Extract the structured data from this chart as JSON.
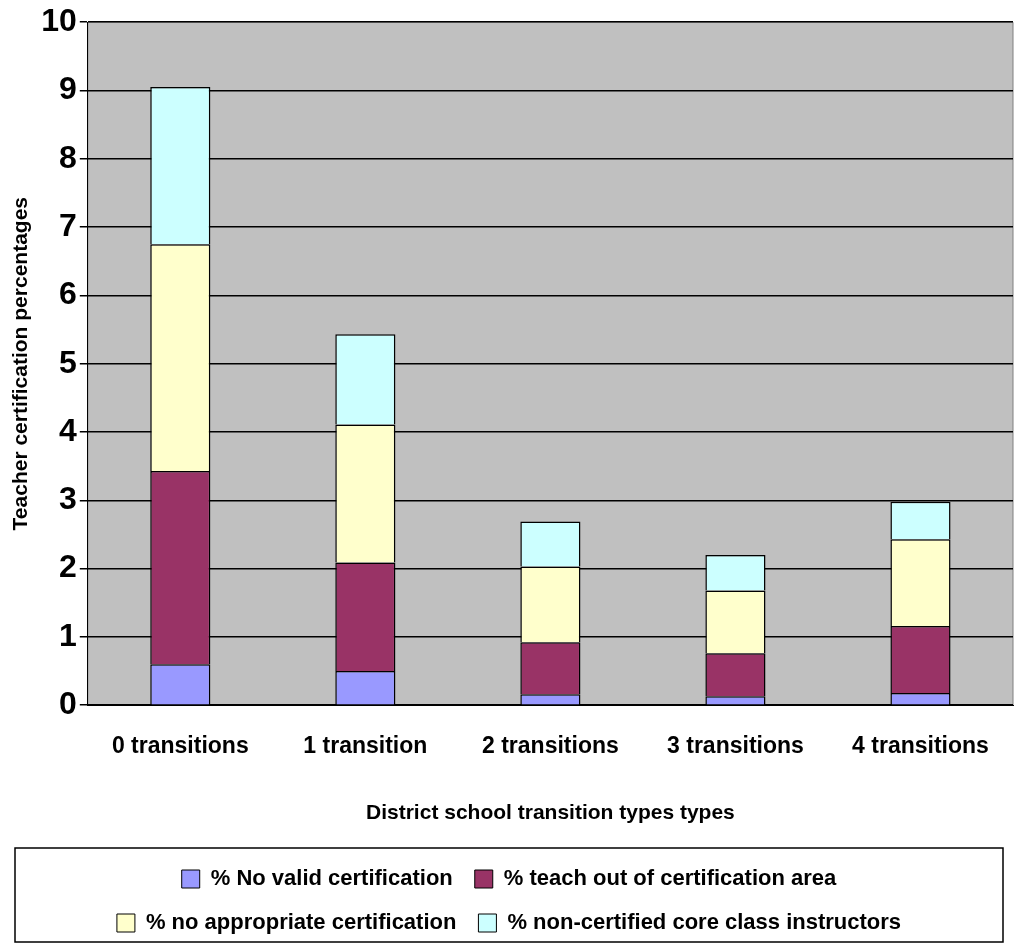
{
  "chart_data": {
    "type": "bar",
    "stacked": true,
    "xlabel": "District school transition types types",
    "ylabel": "Teacher certification percentages",
    "categories": [
      "0 transitions",
      "1 transition",
      "2 transitions",
      "3 transitions",
      "4 transitions"
    ],
    "series": [
      {
        "name": "% No valid certification",
        "color": "#9999ff",
        "values": [
          0.6,
          0.5,
          0.16,
          0.13,
          0.18
        ]
      },
      {
        "name": "% teach out of certification area",
        "color": "#993366",
        "values": [
          2.83,
          1.59,
          0.76,
          0.63,
          0.98
        ]
      },
      {
        "name": "% no appropriate certification",
        "color": "#ffffcc",
        "values": [
          3.32,
          2.02,
          1.11,
          0.92,
          1.27
        ]
      },
      {
        "name": "% non-certified core class instructors",
        "color": "#ccffff",
        "values": [
          2.3,
          1.32,
          0.66,
          0.52,
          0.55
        ]
      }
    ],
    "ylim": [
      0,
      10
    ],
    "yticks": [
      0,
      1,
      2,
      3,
      4,
      5,
      6,
      7,
      8,
      9,
      10
    ],
    "grid": "y",
    "legend": "bottom"
  }
}
